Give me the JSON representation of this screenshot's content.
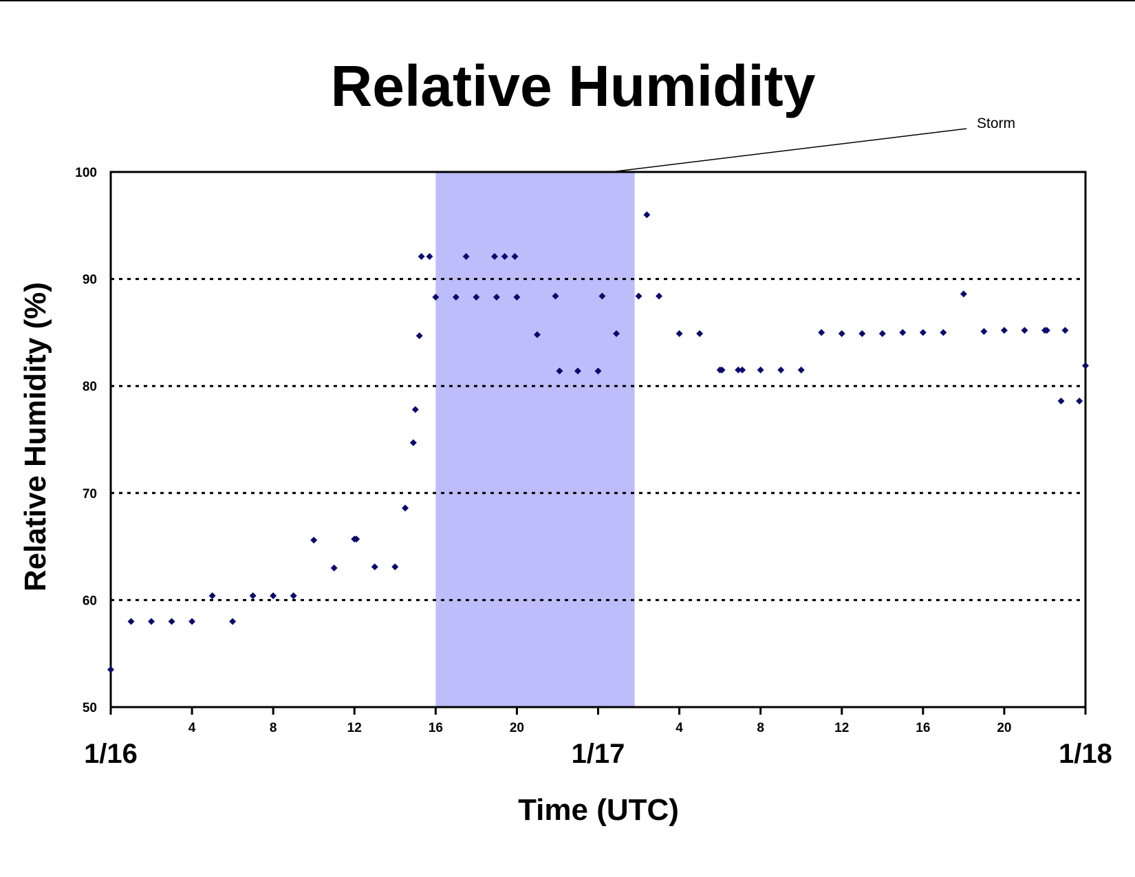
{
  "chart_data": {
    "type": "scatter",
    "title": "Relative Humidity",
    "xlabel": "Time (UTC)",
    "ylabel": "Relative Humidity (%)",
    "ylim": [
      50,
      100
    ],
    "yticks": [
      "50",
      "60",
      "70",
      "80",
      "90",
      "100"
    ],
    "xlim_hours": [
      0,
      48
    ],
    "xticks_hours": [
      0,
      4,
      8,
      12,
      16,
      20,
      24,
      28,
      32,
      36,
      40,
      44,
      48
    ],
    "xtick_labels": [
      "",
      "4",
      "8",
      "12",
      "16",
      "20",
      "",
      "4",
      "8",
      "12",
      "16",
      "20",
      ""
    ],
    "date_labels": [
      {
        "hour": 0,
        "label": "1/16"
      },
      {
        "hour": 24,
        "label": "1/17"
      },
      {
        "hour": 48,
        "label": "1/18"
      }
    ],
    "grid": {
      "y": [
        60,
        70,
        80,
        90
      ],
      "style": "dotted"
    },
    "shaded_region": {
      "label": "Storm",
      "x_hours": [
        16,
        25.8
      ],
      "color": "#bdbdfb"
    },
    "marker_color": "#0a0a6e",
    "series": [
      {
        "x_hours": [
          0,
          1,
          2,
          3,
          4,
          5,
          6,
          7,
          8,
          9,
          10,
          11,
          12,
          12.1,
          13,
          14,
          14.5,
          14.9,
          15,
          15.2,
          15.3,
          15.7,
          16,
          17,
          17.5,
          18,
          18.9,
          19,
          19.4,
          19.9,
          20,
          21,
          21.9,
          22.1,
          23,
          24,
          24.2,
          24.9,
          26,
          26.4,
          27,
          28,
          29,
          30,
          30.1,
          30.9,
          31.1,
          32,
          33,
          34,
          35,
          36,
          37,
          38,
          39,
          40,
          41,
          42,
          43,
          44,
          45,
          46,
          46.1,
          46.8,
          47,
          47.7,
          48
        ],
        "y": [
          53.5,
          58,
          58,
          58,
          58,
          60.4,
          58,
          60.4,
          60.4,
          60.4,
          65.6,
          63,
          65.7,
          65.7,
          63.1,
          63.1,
          68.6,
          74.7,
          77.8,
          84.7,
          92.1,
          92.1,
          88.3,
          88.3,
          92.1,
          88.3,
          92.1,
          88.3,
          92.1,
          92.1,
          88.3,
          84.8,
          88.4,
          81.4,
          81.4,
          81.4,
          88.4,
          84.9,
          88.4,
          96.0,
          88.4,
          84.9,
          84.9,
          81.5,
          81.5,
          81.5,
          81.5,
          81.5,
          81.5,
          81.5,
          85.0,
          84.9,
          84.9,
          84.9,
          85.0,
          85.0,
          85.0,
          88.6,
          85.1,
          85.2,
          85.2,
          85.2,
          85.2,
          78.6,
          85.2,
          78.6,
          81.9
        ]
      }
    ]
  }
}
